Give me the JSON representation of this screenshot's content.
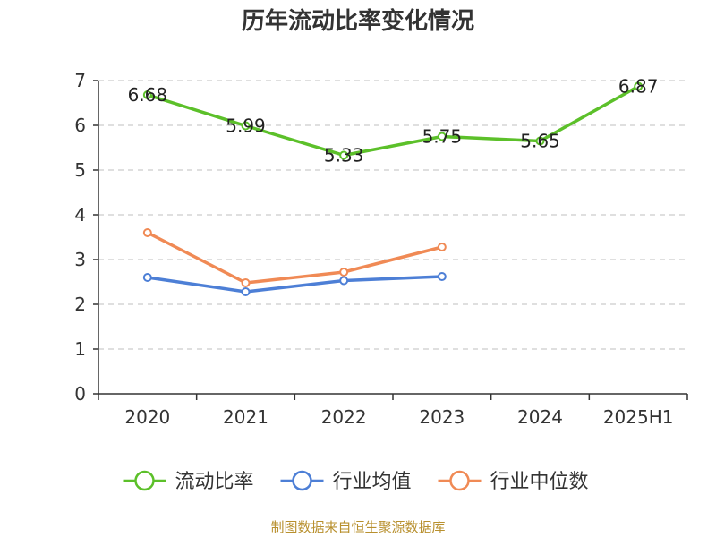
{
  "chart_data": {
    "type": "line",
    "title": "历年流动比率变化情况",
    "categories": [
      "2020",
      "2021",
      "2022",
      "2023",
      "2024",
      "2025H1"
    ],
    "ylim": [
      0,
      7
    ],
    "yticks": [
      0,
      1,
      2,
      3,
      4,
      5,
      6,
      7
    ],
    "grid": true,
    "legend_position": "bottom",
    "series": [
      {
        "name": "流动比率",
        "color": "#5cc02a",
        "values": [
          6.68,
          5.99,
          5.33,
          5.75,
          5.65,
          6.87
        ],
        "labels": [
          "6.68",
          "5.99",
          "5.33",
          "5.75",
          "5.65",
          "6.87"
        ]
      },
      {
        "name": "行业均值",
        "color": "#4d7fd6",
        "values": [
          2.6,
          2.28,
          2.53,
          2.62,
          null,
          null
        ]
      },
      {
        "name": "行业中位数",
        "color": "#f08a55",
        "values": [
          3.6,
          2.48,
          2.72,
          3.28,
          null,
          null
        ]
      }
    ]
  },
  "source_note": "制图数据来自恒生聚源数据库"
}
